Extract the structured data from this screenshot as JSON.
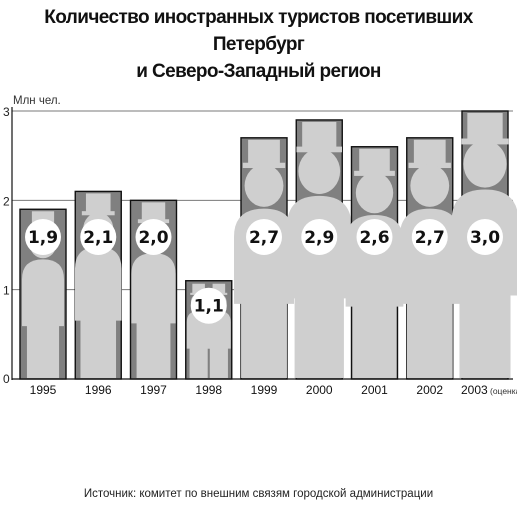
{
  "chart_data": {
    "type": "bar",
    "title_line1": "Количество иностранных туристов посетивших Петербург",
    "title_line2": "и Северо-Западный регион",
    "ylabel": "Млн чел.",
    "ylim": [
      0,
      3
    ],
    "yticks": [
      "0",
      "1",
      "2",
      "3"
    ],
    "categories": [
      "1995",
      "1996",
      "1997",
      "1998",
      "1999",
      "2000",
      "2001",
      "2002",
      "2003"
    ],
    "category_notes": [
      "",
      "",
      "",
      "",
      "",
      "",
      "",
      "",
      "(оценка)"
    ],
    "values": [
      1.9,
      2.1,
      2.0,
      1.1,
      2.7,
      2.9,
      2.6,
      2.7,
      3.0
    ],
    "value_labels": [
      "1,9",
      "2,1",
      "2,0",
      "1,1",
      "2,7",
      "2,9",
      "2,6",
      "2,7",
      "3,0"
    ],
    "grid": true,
    "colors": {
      "bar_fill": "#808080",
      "bar_border": "#111111",
      "figure": "#cfcfcf",
      "gridline": "#7a7a7a",
      "label_circle": "#ffffff"
    }
  },
  "source": "Источник: комитет по внешним связям городской администрации"
}
